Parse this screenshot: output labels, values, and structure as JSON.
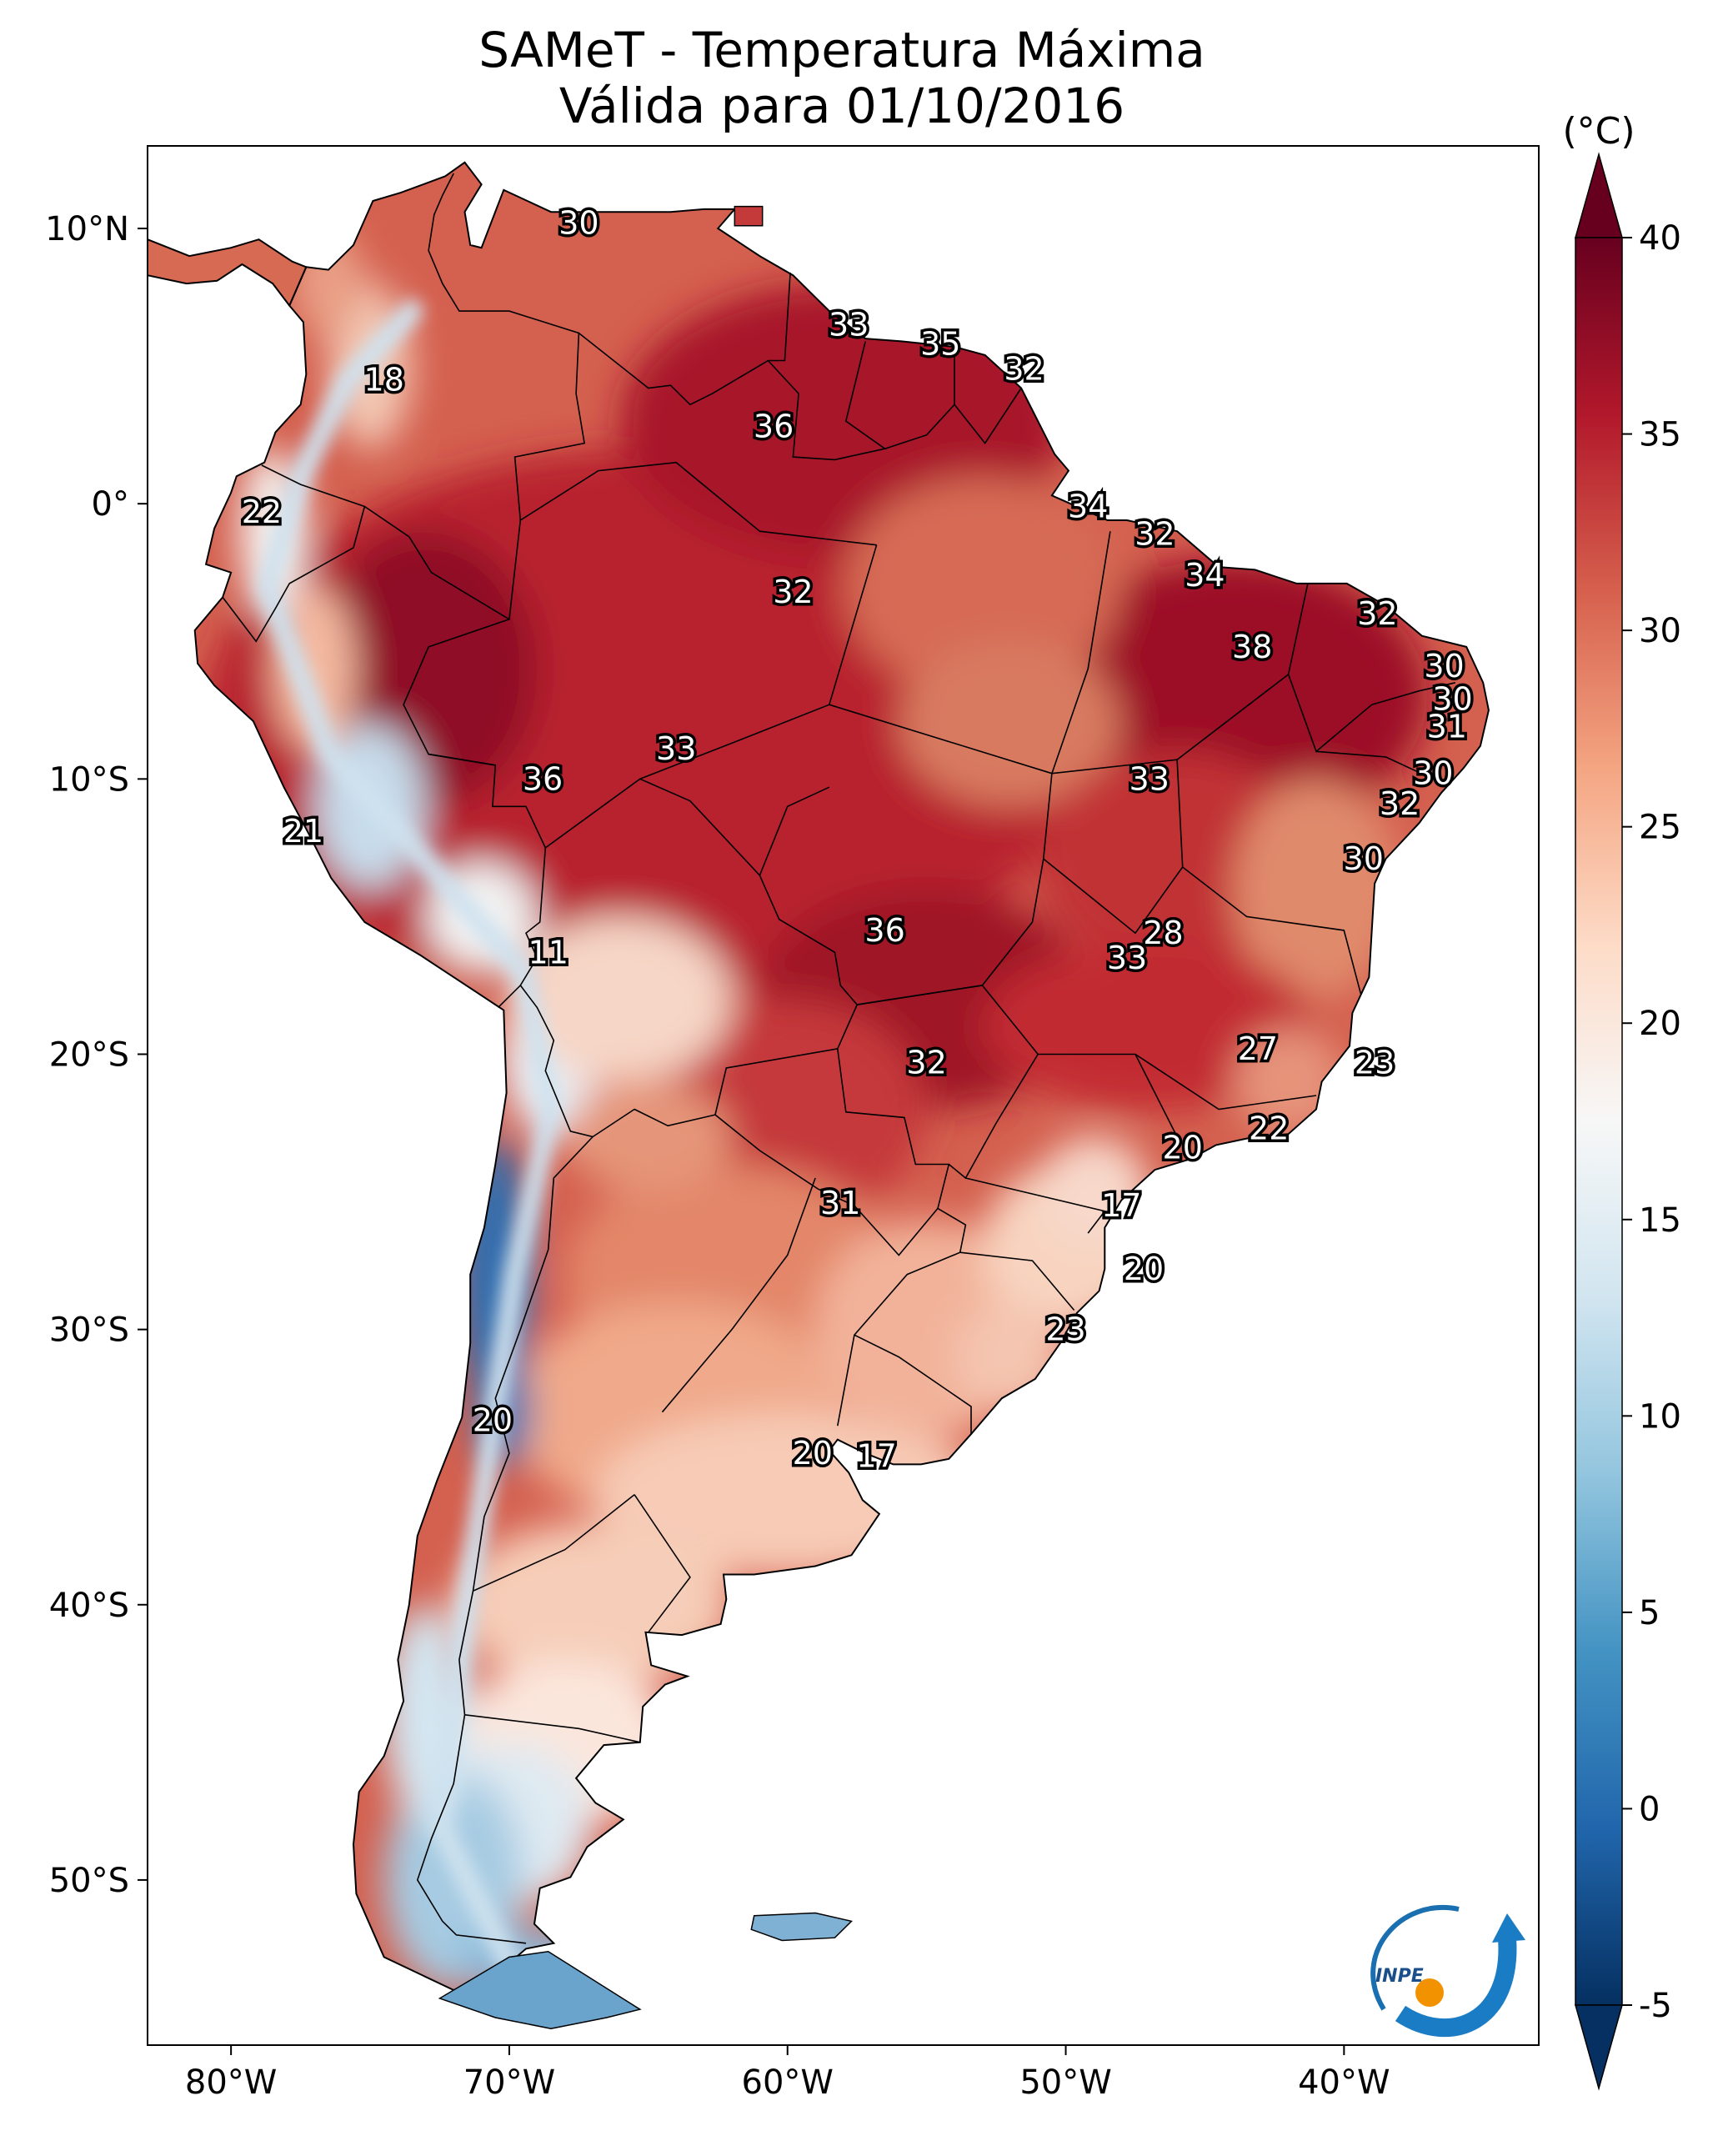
{
  "title_line1": "SAMeT - Temperatura Máxima",
  "title_line2": "Válida para 01/10/2016",
  "units": "(°C)",
  "logo_text": "INPE",
  "chart_data": {
    "type": "heatmap",
    "title": "SAMeT - Temperatura Máxima",
    "subtitle": "Válida para 01/10/2016",
    "variable": "Maximum temperature",
    "units": "°C",
    "x_range_deg": [
      -83,
      -33
    ],
    "y_range_deg": [
      -56,
      13
    ],
    "x_ticks": [
      {
        "value": -80,
        "label": "80°W"
      },
      {
        "value": -70,
        "label": "70°W"
      },
      {
        "value": -60,
        "label": "60°W"
      },
      {
        "value": -50,
        "label": "50°W"
      },
      {
        "value": -40,
        "label": "40°W"
      }
    ],
    "y_ticks": [
      {
        "value": 10,
        "label": "10°N"
      },
      {
        "value": 0,
        "label": "0°"
      },
      {
        "value": -10,
        "label": "10°S"
      },
      {
        "value": -20,
        "label": "20°S"
      },
      {
        "value": -30,
        "label": "30°S"
      },
      {
        "value": -40,
        "label": "40°S"
      },
      {
        "value": -50,
        "label": "50°S"
      }
    ],
    "colorbar": {
      "min": -5,
      "max": 40,
      "ticks": [
        -5,
        0,
        5,
        10,
        15,
        20,
        25,
        30,
        35,
        40
      ],
      "colors": [
        "#053061",
        "#2166ac",
        "#4393c3",
        "#92c5de",
        "#d1e5f0",
        "#f7f7f7",
        "#fddbc7",
        "#f4a582",
        "#d6604d",
        "#b2182b",
        "#67001f"
      ],
      "extend": "both"
    },
    "value_labels": [
      {
        "lon": -67.5,
        "lat": 10.2,
        "value": "30"
      },
      {
        "lon": -57.8,
        "lat": 6.5,
        "value": "33"
      },
      {
        "lon": -54.5,
        "lat": 5.8,
        "value": "35"
      },
      {
        "lon": -51.5,
        "lat": 4.9,
        "value": "32"
      },
      {
        "lon": -74.5,
        "lat": 4.5,
        "value": "18"
      },
      {
        "lon": -60.5,
        "lat": 2.8,
        "value": "36"
      },
      {
        "lon": -49.2,
        "lat": -0.1,
        "value": "34"
      },
      {
        "lon": -78.9,
        "lat": -0.3,
        "value": "22"
      },
      {
        "lon": -46.8,
        "lat": -1.1,
        "value": "32"
      },
      {
        "lon": -59.8,
        "lat": -3.2,
        "value": "32"
      },
      {
        "lon": -45.0,
        "lat": -2.6,
        "value": "34"
      },
      {
        "lon": -38.8,
        "lat": -4.0,
        "value": "32"
      },
      {
        "lon": -43.3,
        "lat": -5.2,
        "value": "38"
      },
      {
        "lon": -36.4,
        "lat": -5.9,
        "value": "30"
      },
      {
        "lon": -36.1,
        "lat": -7.1,
        "value": "30"
      },
      {
        "lon": -36.3,
        "lat": -8.1,
        "value": "31"
      },
      {
        "lon": -64.0,
        "lat": -8.9,
        "value": "33"
      },
      {
        "lon": -68.8,
        "lat": -10.0,
        "value": "36"
      },
      {
        "lon": -47.0,
        "lat": -10.0,
        "value": "33"
      },
      {
        "lon": -36.8,
        "lat": -9.8,
        "value": "30"
      },
      {
        "lon": -38.0,
        "lat": -10.9,
        "value": "32"
      },
      {
        "lon": -39.3,
        "lat": -12.9,
        "value": "30"
      },
      {
        "lon": -77.4,
        "lat": -11.9,
        "value": "21"
      },
      {
        "lon": -68.6,
        "lat": -16.3,
        "value": "11"
      },
      {
        "lon": -56.5,
        "lat": -15.5,
        "value": "36"
      },
      {
        "lon": -46.5,
        "lat": -15.6,
        "value": "28"
      },
      {
        "lon": -47.8,
        "lat": -16.5,
        "value": "33"
      },
      {
        "lon": -43.1,
        "lat": -19.8,
        "value": "27"
      },
      {
        "lon": -38.9,
        "lat": -20.3,
        "value": "23"
      },
      {
        "lon": -55.0,
        "lat": -20.3,
        "value": "32"
      },
      {
        "lon": -42.7,
        "lat": -22.7,
        "value": "22"
      },
      {
        "lon": -45.8,
        "lat": -23.4,
        "value": "20"
      },
      {
        "lon": -58.1,
        "lat": -25.4,
        "value": "31"
      },
      {
        "lon": -48.0,
        "lat": -25.5,
        "value": "17"
      },
      {
        "lon": -47.2,
        "lat": -27.8,
        "value": "20"
      },
      {
        "lon": -50.0,
        "lat": -30.0,
        "value": "23"
      },
      {
        "lon": -70.6,
        "lat": -33.3,
        "value": "20"
      },
      {
        "lon": -59.1,
        "lat": -34.5,
        "value": "20"
      },
      {
        "lon": -56.8,
        "lat": -34.6,
        "value": "17"
      }
    ]
  }
}
